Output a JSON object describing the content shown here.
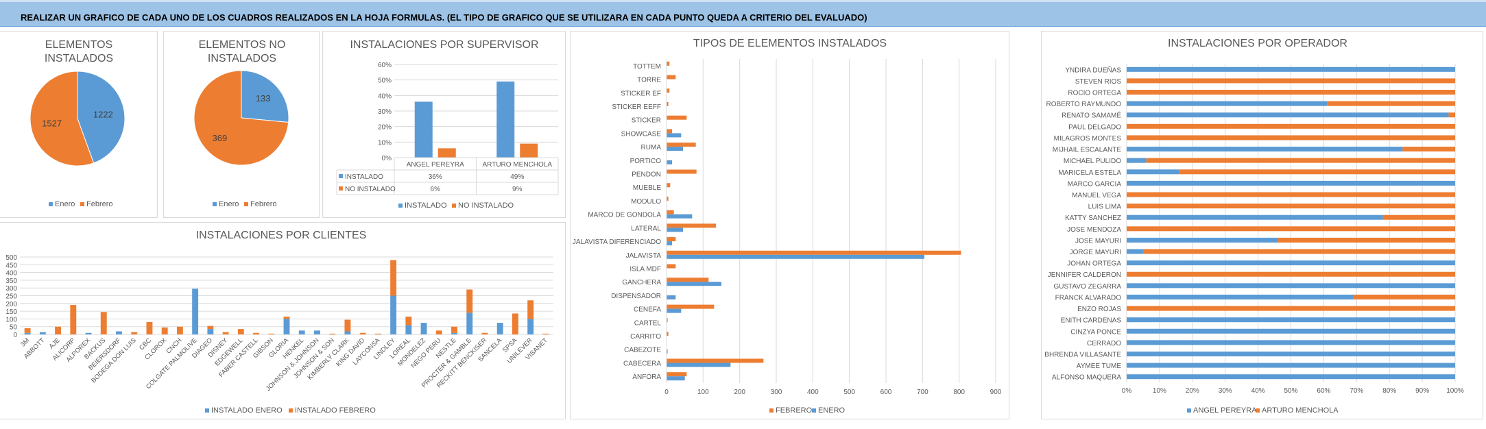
{
  "banner": {
    "text": "REALIZAR UN GRAFICO DE CADA UNO DE LOS CUADROS REALIZADOS EN LA HOJA FORMULAS. (EL TIPO DE GRAFICO QUE SE UTILIZARA EN CADA PUNTO QUEDA A CRITERIO DEL EVALUADO)"
  },
  "colors": {
    "blue": "#5b9bd5",
    "orange": "#ed7d31",
    "grid": "#d9d9d9",
    "text": "#595959"
  },
  "chart_data": [
    {
      "id": "elementos-instalados",
      "type": "pie",
      "title_lines": [
        "ELEMENTOS",
        "INSTALADOS"
      ],
      "categories": [
        "Enero",
        "Febrero"
      ],
      "values": [
        1222,
        1527
      ],
      "legend": [
        "Enero",
        "Febrero"
      ],
      "legend_position": "bottom"
    },
    {
      "id": "elementos-no-instalados",
      "type": "pie",
      "title_lines": [
        "ELEMENTOS NO",
        "INSTALADOS"
      ],
      "categories": [
        "Enero",
        "Febrero"
      ],
      "values": [
        133,
        369
      ],
      "legend": [
        "Enero",
        "Febrero"
      ],
      "legend_position": "bottom"
    },
    {
      "id": "instalaciones-por-supervisor",
      "type": "bar",
      "title": "INSTALACIONES POR SUPERVISOR",
      "categories": [
        "ANGEL PEREYRA",
        "ARTURO MENCHOLA"
      ],
      "series": [
        {
          "name": "INSTALADO",
          "values": [
            36,
            49
          ],
          "labels": [
            "36%",
            "49%"
          ]
        },
        {
          "name": "NO INSTALADO",
          "values": [
            6,
            9
          ],
          "labels": [
            "6%",
            "9%"
          ]
        }
      ],
      "ylim": [
        0,
        60
      ],
      "yticks": [
        "0%",
        "10%",
        "20%",
        "30%",
        "40%",
        "50%",
        "60%"
      ],
      "data_table": true,
      "legend_position": "bottom"
    },
    {
      "id": "instalaciones-por-clientes",
      "type": "bar",
      "stacked": true,
      "title": "INSTALACIONES POR CLIENTES",
      "categories": [
        "3M",
        "ABBOTT",
        "AJE",
        "ALICORP",
        "ALPOREX",
        "BACKUS",
        "BEIERSDORF",
        "BODEGA DON LUIS",
        "CBC",
        "CLOROX",
        "CNCH",
        "COLGATE PALMOLIVE",
        "DIAGEO",
        "DISNEY",
        "EDGEWELL",
        "FABER CASTELL",
        "GIBSON",
        "GLORIA",
        "HENKEL",
        "JOHNSON & JOHNSON",
        "JOHNSON & SON",
        "KIMBERLY CLARK",
        "KING DAVID",
        "LAYCONSA",
        "LINDLEY",
        "LOREAL",
        "MONDELEZ",
        "NEGO PERU",
        "NESTLE",
        "PROCTER & GAMBLE",
        "RECKITT BENCKISER",
        "SANCELA",
        "SPSA",
        "UNILEVER",
        "VISANET"
      ],
      "series": [
        {
          "name": "INSTALADO ENERO",
          "values": [
            10,
            15,
            0,
            0,
            10,
            0,
            20,
            0,
            0,
            0,
            0,
            295,
            35,
            0,
            0,
            0,
            0,
            100,
            25,
            25,
            0,
            20,
            0,
            0,
            250,
            60,
            75,
            0,
            10,
            140,
            0,
            75,
            0,
            100,
            0
          ]
        },
        {
          "name": "INSTALADO FEBRERO",
          "values": [
            30,
            0,
            50,
            190,
            0,
            145,
            0,
            15,
            80,
            45,
            50,
            0,
            20,
            15,
            35,
            10,
            5,
            15,
            0,
            0,
            5,
            75,
            10,
            5,
            230,
            55,
            0,
            25,
            40,
            150,
            10,
            0,
            135,
            120,
            5
          ]
        }
      ],
      "ylim": [
        0,
        500
      ],
      "yticks": [
        0,
        50,
        100,
        150,
        200,
        250,
        300,
        350,
        400,
        450,
        500
      ],
      "legend_position": "bottom"
    },
    {
      "id": "tipos-de-elementos-instalados",
      "type": "bar",
      "orientation": "horizontal",
      "title": "TIPOS DE ELEMENTOS INSTALADOS",
      "categories": [
        "TOTTEM",
        "TORRE",
        "STICKER EF",
        "STICKER EEFF",
        "STICKER",
        "SHOWCASE",
        "RUMA",
        "PORTICO",
        "PENDON",
        "MUEBLE",
        "MODULO",
        "MARCO DE GONDOLA",
        "LATERAL",
        "JALAVISTA DIFERENCIADO",
        "JALAVISTA",
        "ISLA MDF",
        "GANCHERA",
        "DISPENSADOR",
        "CENEFA",
        "CARTEL",
        "CARRITO",
        "CABEZOTE",
        "CABECERA",
        "ANFORA"
      ],
      "series": [
        {
          "name": "ENERO",
          "values": [
            0,
            0,
            0,
            0,
            0,
            40,
            45,
            15,
            0,
            0,
            0,
            70,
            45,
            15,
            705,
            0,
            150,
            25,
            40,
            0,
            0,
            3,
            175,
            50
          ]
        },
        {
          "name": "FEBRERO",
          "values": [
            8,
            25,
            8,
            5,
            55,
            15,
            80,
            0,
            82,
            10,
            5,
            20,
            135,
            25,
            805,
            25,
            115,
            0,
            130,
            3,
            5,
            0,
            265,
            55
          ]
        }
      ],
      "xlim": [
        0,
        900
      ],
      "xticks": [
        0,
        100,
        200,
        300,
        400,
        500,
        600,
        700,
        800,
        900
      ],
      "legend": [
        "FEBRERO",
        "ENERO"
      ],
      "legend_position": "bottom"
    },
    {
      "id": "instalaciones-por-operador",
      "type": "bar",
      "orientation": "horizontal",
      "stacked_percent": true,
      "title": "INSTALACIONES POR OPERADOR",
      "categories": [
        "YNDIRA DUEÑAS",
        "STEVEN RIOS",
        "ROCIO ORTEGA",
        "ROBERTO RAYMUNDO",
        "RENATO SAMAMÉ",
        "PAUL DELGADO",
        "MILAGROS MONTES",
        "MIJHAIL ESCALANTE",
        "MICHAEL PULIDO",
        "MARICELA ESTELA",
        "MARCO GARCIA",
        "MANUEL VEGA",
        "LUIS LIMA",
        "KATTY SANCHEZ",
        "JOSE MENDOZA",
        "JOSE MAYURI",
        "JORGE MAYURI",
        "JOHAN ORTEGA",
        "JENNIFER CALDERON",
        "GUSTAVO ZEGARRA",
        "FRANCK ALVARADO",
        "ENZO ROJAS",
        "ENITH CARDENAS",
        "CINZYA PONCE",
        "CERRADO",
        "BHRENDA VILLASANTE",
        "AYMEE TUME",
        "ALFONSO MAQUERA"
      ],
      "series": [
        {
          "name": "ANGEL PEREYRA",
          "values": [
            100,
            0,
            0,
            61,
            98,
            0,
            0,
            84,
            6,
            16,
            100,
            0,
            0,
            78,
            0,
            46,
            5,
            100,
            0,
            100,
            69,
            0,
            100,
            100,
            100,
            100,
            100,
            100
          ]
        },
        {
          "name": "ARTURO MENCHOLA",
          "values": [
            0,
            100,
            100,
            39,
            2,
            100,
            100,
            16,
            94,
            84,
            0,
            100,
            100,
            22,
            100,
            54,
            95,
            0,
            100,
            0,
            31,
            100,
            0,
            0,
            0,
            0,
            0,
            0
          ]
        }
      ],
      "xticks": [
        "0%",
        "10%",
        "20%",
        "30%",
        "40%",
        "50%",
        "60%",
        "70%",
        "80%",
        "90%",
        "100%"
      ],
      "legend_position": "bottom"
    }
  ]
}
